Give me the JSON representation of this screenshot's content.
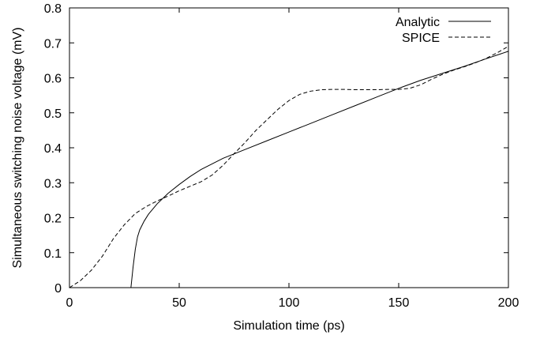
{
  "chart_data": {
    "type": "line",
    "xlabel": "Simulation time (ps)",
    "ylabel": "Simultaneous switching noise voltage (mV)",
    "xlim": [
      0,
      200
    ],
    "ylim": [
      0,
      0.8
    ],
    "x_ticks": [
      0,
      50,
      100,
      150,
      200
    ],
    "y_ticks": [
      0,
      0.1,
      0.2,
      0.3,
      0.4,
      0.5,
      0.6,
      0.7,
      0.8
    ],
    "grid": false,
    "legend_position": "top-right",
    "series": [
      {
        "name": "Analytic",
        "style": "solid",
        "color": "#000000",
        "x": [
          28,
          29,
          30,
          31,
          32,
          34,
          36,
          40,
          45,
          50,
          55,
          60,
          70,
          80,
          90,
          100,
          110,
          120,
          130,
          140,
          150,
          160,
          170,
          180,
          190,
          200
        ],
        "y": [
          0,
          0.06,
          0.11,
          0.145,
          0.165,
          0.19,
          0.21,
          0.24,
          0.27,
          0.295,
          0.318,
          0.338,
          0.37,
          0.395,
          0.42,
          0.445,
          0.47,
          0.495,
          0.52,
          0.545,
          0.57,
          0.593,
          0.613,
          0.633,
          0.655,
          0.676
        ]
      },
      {
        "name": "SPICE",
        "style": "dashed",
        "color": "#000000",
        "x": [
          0,
          5,
          10,
          15,
          20,
          25,
          30,
          35,
          40,
          45,
          50,
          55,
          60,
          65,
          70,
          75,
          80,
          85,
          90,
          95,
          100,
          105,
          110,
          115,
          120,
          125,
          130,
          135,
          140,
          145,
          150,
          155,
          160,
          165,
          170,
          175,
          180,
          185,
          190,
          195,
          200
        ],
        "y": [
          0,
          0.02,
          0.05,
          0.09,
          0.14,
          0.18,
          0.212,
          0.232,
          0.248,
          0.262,
          0.277,
          0.29,
          0.303,
          0.322,
          0.35,
          0.383,
          0.415,
          0.45,
          0.48,
          0.51,
          0.535,
          0.553,
          0.562,
          0.566,
          0.567,
          0.567,
          0.566,
          0.566,
          0.566,
          0.567,
          0.567,
          0.57,
          0.58,
          0.596,
          0.61,
          0.622,
          0.632,
          0.643,
          0.656,
          0.672,
          0.69
        ]
      }
    ]
  }
}
